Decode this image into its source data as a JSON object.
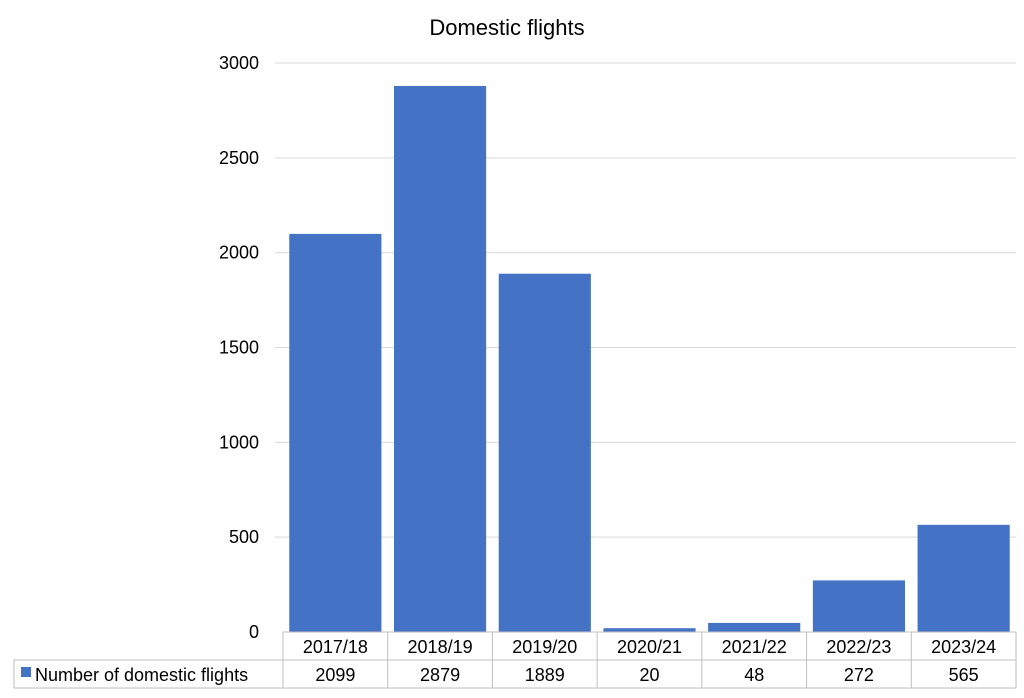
{
  "chart_data": {
    "type": "bar",
    "title": "Domestic flights",
    "categories": [
      "2017/18",
      "2018/19",
      "2019/20",
      "2020/21",
      "2021/22",
      "2022/23",
      "2023/24"
    ],
    "series": [
      {
        "name": "Number of domestic flights",
        "values": [
          2099,
          2879,
          1889,
          20,
          48,
          272,
          565
        ]
      }
    ],
    "table_values": [
      "2099",
      "2879",
      "1889",
      "20",
      "48",
      "272",
      "565"
    ],
    "y_ticks": [
      "0",
      "500",
      "1000",
      "1500",
      "2000",
      "2500",
      "3000"
    ],
    "ylim": [
      0,
      3000
    ],
    "grid": true,
    "legend": "data-table",
    "colors": {
      "bar": "#4472C4",
      "grid": "#D9D9D9",
      "table_border": "#BFBFBF"
    }
  }
}
